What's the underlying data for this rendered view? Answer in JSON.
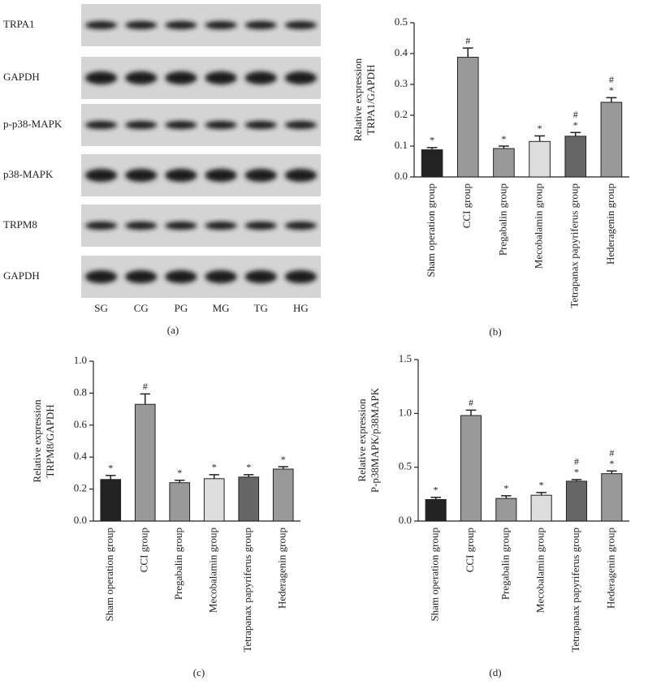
{
  "blot": {
    "rows": [
      "TRPA1",
      "GAPDH",
      "p-p38-MAPK",
      "p38-MAPK",
      "TRPM8",
      "GAPDH"
    ],
    "lanes": [
      "SG",
      "CG",
      "PG",
      "MG",
      "TG",
      "HG"
    ],
    "caption": "(a)"
  },
  "chart_data": [
    {
      "type": "bar",
      "caption": "(b)",
      "ylabel": [
        "Relative expression",
        "TRPA1/GAPDH"
      ],
      "categories": [
        "Sham operation group",
        "CCI group",
        "Pregabalin group",
        "Mecobalamin group",
        "Tetrapanax papyriferus group",
        "Hederagenin group"
      ],
      "values": [
        0.088,
        0.388,
        0.092,
        0.115,
        0.132,
        0.242
      ],
      "errors": [
        0.007,
        0.03,
        0.008,
        0.018,
        0.012,
        0.015
      ],
      "colors": [
        "#222222",
        "#999999",
        "#999999",
        "#dddddd",
        "#666666",
        "#999999"
      ],
      "markers": [
        [
          "*"
        ],
        [
          "#"
        ],
        [
          "*"
        ],
        [
          "*"
        ],
        [
          "*",
          "#"
        ],
        [
          "*",
          "#"
        ]
      ],
      "ylim": [
        0,
        0.5
      ],
      "yticks": [
        {
          "value": 0,
          "label": "0.0"
        },
        0.1,
        0.2,
        0.3,
        0.4,
        0.5
      ]
    },
    {
      "type": "bar",
      "caption": "(c)",
      "ylabel": [
        "Relative expression",
        "TRPM8/GAPDH"
      ],
      "categories": [
        "Sham operation group",
        "CCI group",
        "Pregabalin group",
        "Mecobalamin group",
        "Tetrapanax papyriferus group",
        "Hederagenin group"
      ],
      "values": [
        0.26,
        0.73,
        0.24,
        0.265,
        0.275,
        0.325
      ],
      "errors": [
        0.025,
        0.065,
        0.015,
        0.025,
        0.015,
        0.015
      ],
      "colors": [
        "#222222",
        "#999999",
        "#999999",
        "#dddddd",
        "#666666",
        "#999999"
      ],
      "markers": [
        [
          "*"
        ],
        [
          "#"
        ],
        [
          "*"
        ],
        [
          "*"
        ],
        [
          "*"
        ],
        [
          "*"
        ]
      ],
      "ylim": [
        0,
        1
      ],
      "yticks": [
        {
          "value": 0,
          "label": "0.0"
        },
        0.2,
        0.4,
        0.6,
        0.8,
        {
          "value": 1,
          "label": "1.0"
        }
      ]
    },
    {
      "type": "bar",
      "caption": "(d)",
      "ylabel": [
        "Relative expression",
        "P-p38MAPK/p38MAPK"
      ],
      "categories": [
        "Sham operation group",
        "CCI group",
        "Pregabalin group",
        "Mecobalamin group",
        "Tetrapanax papyriferus group",
        "Hederagenin group"
      ],
      "values": [
        0.2,
        0.98,
        0.21,
        0.24,
        0.37,
        0.44
      ],
      "errors": [
        0.02,
        0.05,
        0.025,
        0.025,
        0.015,
        0.025
      ],
      "colors": [
        "#222222",
        "#999999",
        "#999999",
        "#dddddd",
        "#666666",
        "#999999"
      ],
      "markers": [
        [
          "*"
        ],
        [
          "#"
        ],
        [
          "*"
        ],
        [
          "*"
        ],
        [
          "*",
          "#"
        ],
        [
          "*",
          "#"
        ]
      ],
      "ylim": [
        0,
        1.5
      ],
      "yticks": [
        {
          "value": 0,
          "label": "0.0"
        },
        0.5,
        {
          "value": 1,
          "label": "1.0"
        },
        1.5
      ]
    }
  ]
}
